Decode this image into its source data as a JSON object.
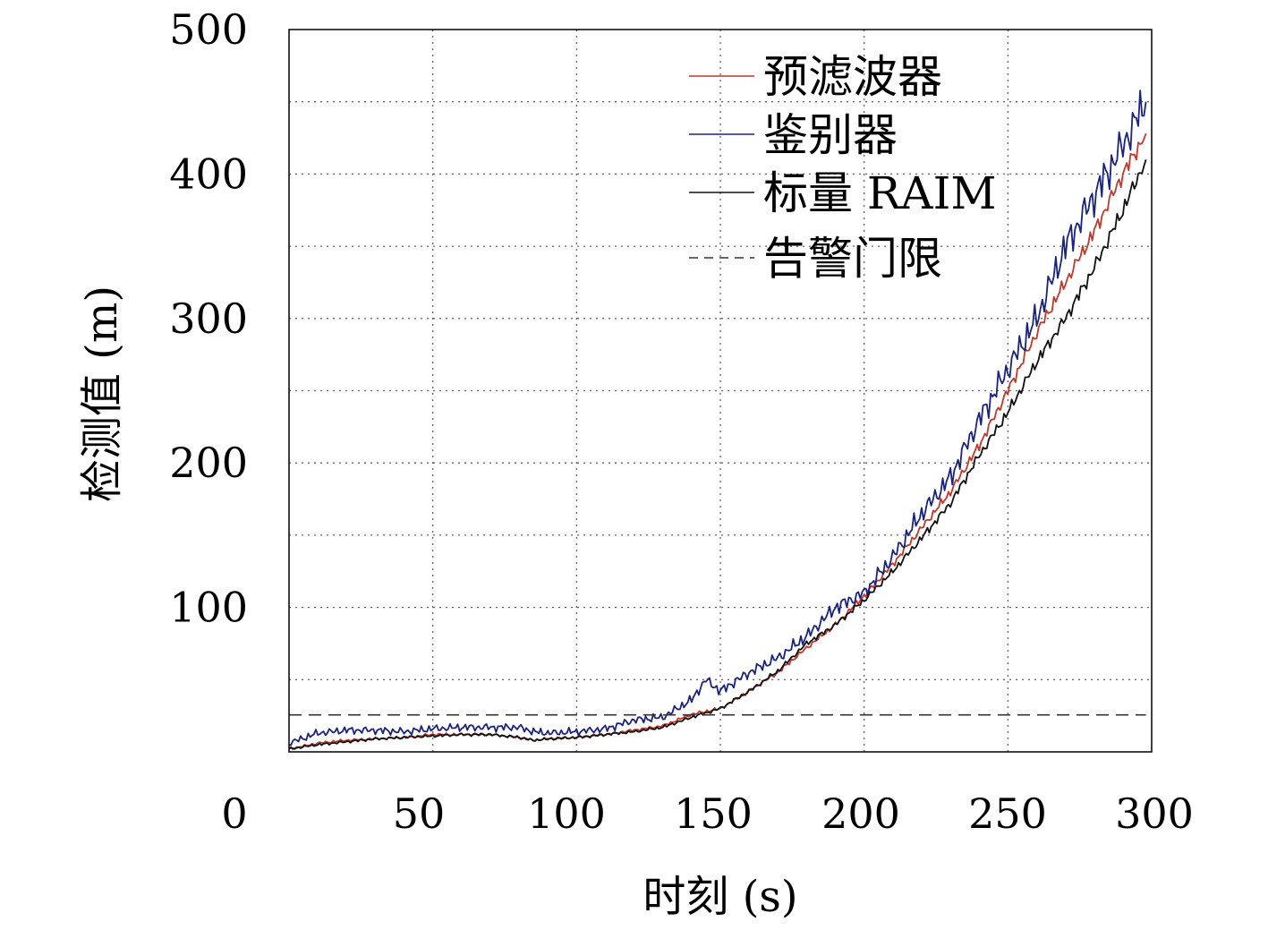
{
  "chart_data": {
    "type": "line",
    "xlabel": "时刻 (s)",
    "ylabel": "检测值 (m)",
    "xlim": [
      0,
      300
    ],
    "ylim": [
      0,
      500
    ],
    "x_ticks": [
      0,
      50,
      100,
      150,
      200,
      250,
      300
    ],
    "x_tick_labels": [
      "0",
      "50",
      "100",
      "150",
      "200",
      "250",
      "300"
    ],
    "y_ticks": [
      100,
      200,
      300,
      400,
      500
    ],
    "y_tick_labels": [
      "100",
      "200",
      "300",
      "400",
      "500"
    ],
    "grid": true,
    "legend_position": "top-right",
    "series": [
      {
        "name": "预滤波器",
        "color": "#c0392b",
        "style": "solid",
        "x": [
          0,
          10,
          20,
          30,
          40,
          50,
          60,
          70,
          80,
          85,
          90,
          100,
          110,
          120,
          130,
          140,
          150,
          160,
          170,
          180,
          190,
          200,
          210,
          220,
          230,
          240,
          250,
          260,
          270,
          280,
          290,
          298
        ],
        "y": [
          2,
          6,
          8,
          9,
          10,
          12,
          12,
          12,
          10,
          8,
          9,
          10,
          12,
          15,
          18,
          26,
          30,
          42,
          55,
          72,
          88,
          108,
          130,
          155,
          180,
          212,
          250,
          290,
          325,
          360,
          400,
          428
        ]
      },
      {
        "name": "鉴别器",
        "color": "#1a237e",
        "style": "solid",
        "x": [
          0,
          10,
          20,
          30,
          40,
          50,
          60,
          70,
          80,
          85,
          90,
          100,
          110,
          120,
          130,
          140,
          145,
          150,
          160,
          170,
          180,
          190,
          200,
          210,
          220,
          230,
          240,
          250,
          260,
          270,
          280,
          290,
          298
        ],
        "y": [
          6,
          13,
          15,
          15,
          14,
          16,
          17,
          17,
          17,
          14,
          13,
          14,
          16,
          22,
          24,
          36,
          50,
          42,
          55,
          65,
          80,
          100,
          110,
          135,
          165,
          190,
          230,
          265,
          300,
          350,
          385,
          420,
          450
        ]
      },
      {
        "name": "标量 RAIM",
        "color": "#111111",
        "style": "solid",
        "x": [
          0,
          10,
          20,
          30,
          40,
          50,
          60,
          70,
          80,
          85,
          90,
          100,
          110,
          120,
          130,
          140,
          150,
          160,
          170,
          180,
          190,
          200,
          210,
          220,
          230,
          240,
          250,
          260,
          270,
          280,
          290,
          298
        ],
        "y": [
          2,
          5,
          7,
          9,
          10,
          11,
          12,
          12,
          10,
          8,
          9,
          10,
          12,
          14,
          17,
          24,
          30,
          42,
          56,
          75,
          88,
          105,
          125,
          148,
          172,
          205,
          235,
          270,
          300,
          335,
          375,
          410
        ]
      },
      {
        "name": "告警门限",
        "color": "#333333",
        "style": "dashed",
        "x": [
          0,
          298
        ],
        "y": [
          25.6,
          25.6
        ]
      }
    ]
  }
}
